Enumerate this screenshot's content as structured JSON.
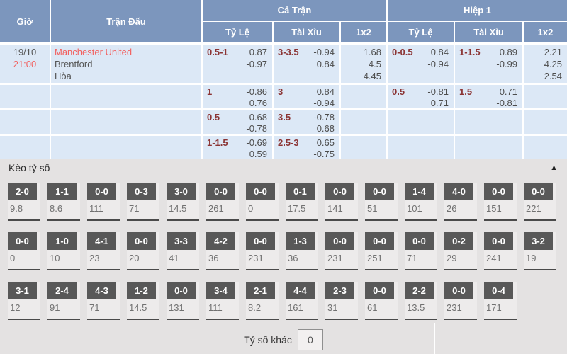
{
  "odds_table": {
    "headers": {
      "time": "Giờ",
      "match": "Trận Đấu",
      "full_match": "Cả Trận",
      "first_half": "Hiệp 1",
      "handicap": "Tỷ Lệ",
      "over_under": "Tài Xỉu",
      "one_x_two": "1x2"
    },
    "match": {
      "date": "19/10",
      "time": "21:00",
      "home": "Manchester United",
      "away": "Brentford",
      "draw": "Hòa"
    },
    "rows": [
      {
        "ft_handicap": {
          "line": "0.5-1",
          "odds1": "0.87",
          "odds2": "-0.97"
        },
        "ft_ou": {
          "line": "3-3.5",
          "odds1": "-0.94",
          "odds2": "0.84"
        },
        "ft_1x2": [
          "1.68",
          "4.5",
          "4.45"
        ],
        "h1_handicap": {
          "line": "0-0.5",
          "odds1": "0.84",
          "odds2": "-0.94"
        },
        "h1_ou": {
          "line": "1-1.5",
          "odds1": "0.89",
          "odds2": "-0.99"
        },
        "h1_1x2": [
          "2.21",
          "4.25",
          "2.54"
        ]
      },
      {
        "ft_handicap": {
          "line": "1",
          "odds1": "-0.86",
          "odds2": "0.76"
        },
        "ft_ou": {
          "line": "3",
          "odds1": "0.84",
          "odds2": "-0.94"
        },
        "ft_1x2": [],
        "h1_handicap": {
          "line": "0.5",
          "odds1": "-0.81",
          "odds2": "0.71"
        },
        "h1_ou": {
          "line": "1.5",
          "odds1": "0.71",
          "odds2": "-0.81"
        },
        "h1_1x2": []
      },
      {
        "ft_handicap": {
          "line": "0.5",
          "odds1": "0.68",
          "odds2": "-0.78"
        },
        "ft_ou": {
          "line": "3.5",
          "odds1": "-0.78",
          "odds2": "0.68"
        },
        "ft_1x2": [],
        "h1_handicap": {
          "line": "",
          "odds1": "",
          "odds2": ""
        },
        "h1_ou": {
          "line": "",
          "odds1": "",
          "odds2": ""
        },
        "h1_1x2": []
      },
      {
        "ft_handicap": {
          "line": "1-1.5",
          "odds1": "-0.69",
          "odds2": "0.59"
        },
        "ft_ou": {
          "line": "2.5-3",
          "odds1": "0.65",
          "odds2": "-0.75"
        },
        "ft_1x2": [],
        "h1_handicap": {
          "line": "",
          "odds1": "",
          "odds2": ""
        },
        "h1_ou": {
          "line": "",
          "odds1": "",
          "odds2": ""
        },
        "h1_1x2": []
      }
    ]
  },
  "score_section": {
    "title": "Kèo tỷ số",
    "collapse_icon": "▲",
    "rows": [
      [
        {
          "score": "2-0",
          "odds": "9.8"
        },
        {
          "score": "1-1",
          "odds": "8.6"
        },
        {
          "score": "0-0",
          "odds": "111"
        },
        {
          "score": "0-3",
          "odds": "71"
        },
        {
          "score": "3-0",
          "odds": "14.5"
        },
        {
          "score": "0-0",
          "odds": "261"
        },
        {
          "score": "0-0",
          "odds": "0"
        },
        {
          "score": "0-1",
          "odds": "17.5"
        },
        {
          "score": "0-0",
          "odds": "141"
        },
        {
          "score": "0-0",
          "odds": "51"
        },
        {
          "score": "1-4",
          "odds": "101"
        },
        {
          "score": "4-0",
          "odds": "26"
        },
        {
          "score": "0-0",
          "odds": "151"
        },
        {
          "score": "0-0",
          "odds": "221"
        }
      ],
      [
        {
          "score": "0-0",
          "odds": "0"
        },
        {
          "score": "1-0",
          "odds": "10"
        },
        {
          "score": "4-1",
          "odds": "23"
        },
        {
          "score": "0-0",
          "odds": "20"
        },
        {
          "score": "3-3",
          "odds": "41"
        },
        {
          "score": "4-2",
          "odds": "36"
        },
        {
          "score": "0-0",
          "odds": "231"
        },
        {
          "score": "1-3",
          "odds": "36"
        },
        {
          "score": "0-0",
          "odds": "231"
        },
        {
          "score": "0-0",
          "odds": "251"
        },
        {
          "score": "0-0",
          "odds": "71"
        },
        {
          "score": "0-2",
          "odds": "29"
        },
        {
          "score": "0-0",
          "odds": "241"
        },
        {
          "score": "3-2",
          "odds": "19"
        }
      ],
      [
        {
          "score": "3-1",
          "odds": "12"
        },
        {
          "score": "2-4",
          "odds": "91"
        },
        {
          "score": "4-3",
          "odds": "71"
        },
        {
          "score": "1-2",
          "odds": "14.5"
        },
        {
          "score": "0-0",
          "odds": "131"
        },
        {
          "score": "3-4",
          "odds": "111"
        },
        {
          "score": "2-1",
          "odds": "8.2"
        },
        {
          "score": "4-4",
          "odds": "161"
        },
        {
          "score": "2-3",
          "odds": "31"
        },
        {
          "score": "0-0",
          "odds": "61"
        },
        {
          "score": "2-2",
          "odds": "13.5"
        },
        {
          "score": "0-0",
          "odds": "231"
        },
        {
          "score": "0-4",
          "odds": "171"
        }
      ]
    ],
    "other_label": "Tỷ số khác",
    "other_value": "0"
  },
  "colors": {
    "header_blue": "#7C96BD",
    "row_blue": "#DCE8F6",
    "handicap_red": "#8B3434",
    "team_red": "#F2605F",
    "chip_gray": "#585858",
    "section_gray": "#E4E2E2"
  }
}
